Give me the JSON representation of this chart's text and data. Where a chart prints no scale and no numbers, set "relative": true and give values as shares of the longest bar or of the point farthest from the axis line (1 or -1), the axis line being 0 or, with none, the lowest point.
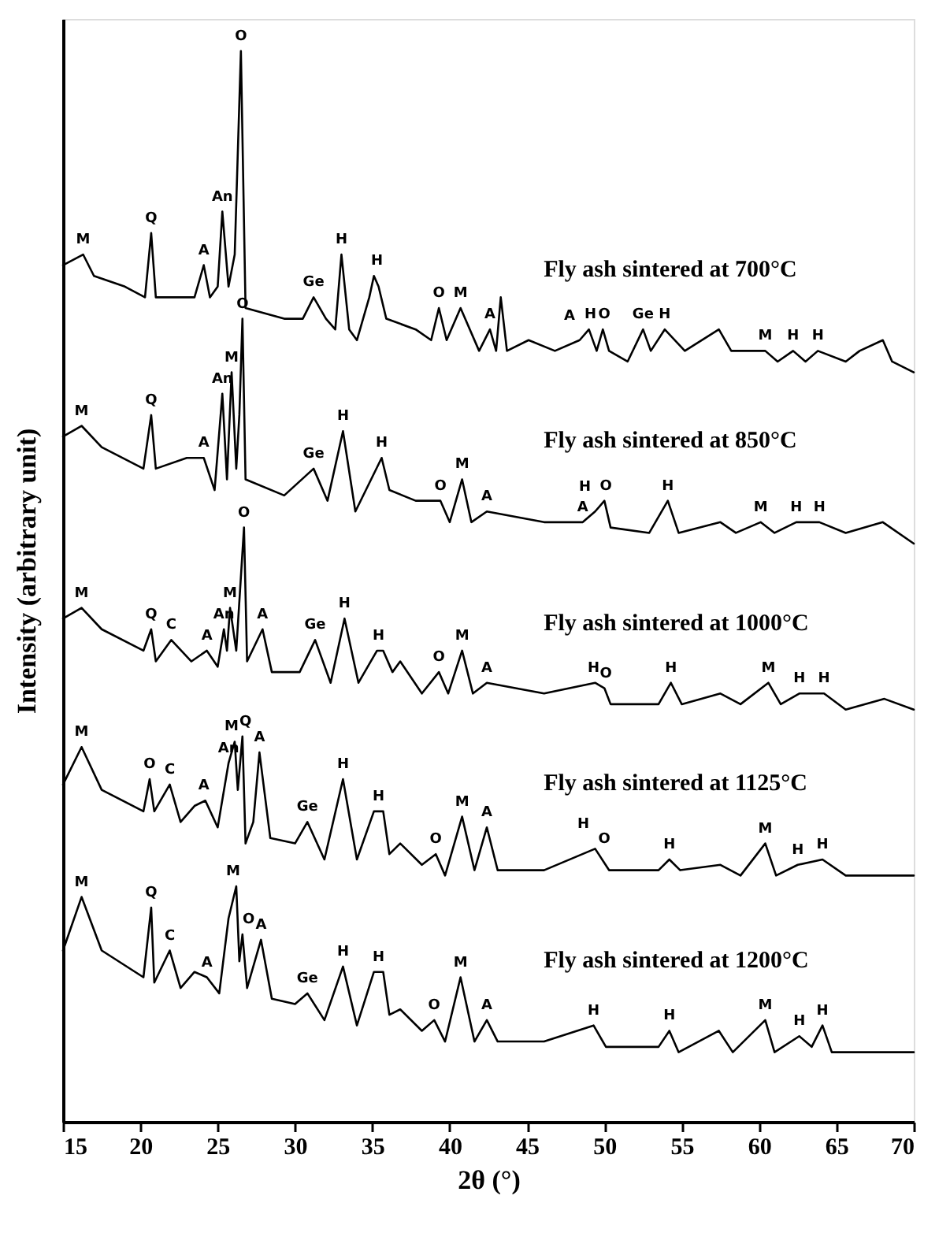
{
  "chart_data": {
    "type": "line",
    "relative": true,
    "xlabel": "2θ (°)",
    "ylabel": "Intensity (arbitrary unit)",
    "xlim": [
      15,
      70
    ],
    "xticks": [
      15,
      20,
      25,
      30,
      35,
      40,
      45,
      50,
      55,
      60,
      65,
      70
    ],
    "grid": false,
    "legend": false,
    "marker": "none",
    "line_style": "solid",
    "series": [
      {
        "name": "Fly ash sintered at 700°C",
        "color": "#000000",
        "x": [
          15.0,
          16.3,
          17,
          19,
          20.3,
          20.7,
          21.0,
          23.5,
          24.1,
          24.5,
          25.0,
          25.3,
          25.7,
          26.1,
          26.5,
          26.8,
          29.3,
          30.5,
          31.2,
          32.0,
          32.6,
          33.0,
          33.5,
          34.0,
          34.8,
          35.1,
          35.4,
          35.9,
          37.8,
          38.8,
          39.3,
          39.8,
          40.7,
          41.9,
          42.6,
          43.0,
          43.3,
          43.7,
          45.1,
          46.8,
          48.4,
          49.0,
          49.5,
          49.9,
          50.3,
          51.5,
          52.5,
          53.0,
          53.9,
          55.2,
          57.4,
          58.2,
          59.7,
          60.4,
          61.2,
          62.2,
          63.0,
          63.8,
          65.6,
          66.5,
          68.0,
          68.6,
          70
        ],
        "values": [
          0.8,
          0.81,
          0.79,
          0.78,
          0.77,
          0.83,
          0.77,
          0.77,
          0.8,
          0.77,
          0.78,
          0.85,
          0.78,
          0.81,
          1.0,
          0.76,
          0.75,
          0.75,
          0.77,
          0.75,
          0.74,
          0.81,
          0.74,
          0.73,
          0.77,
          0.79,
          0.78,
          0.75,
          0.74,
          0.73,
          0.76,
          0.73,
          0.76,
          0.72,
          0.74,
          0.72,
          0.77,
          0.72,
          0.73,
          0.72,
          0.73,
          0.74,
          0.72,
          0.74,
          0.72,
          0.71,
          0.74,
          0.72,
          0.74,
          0.72,
          0.74,
          0.72,
          0.72,
          0.72,
          0.71,
          0.72,
          0.71,
          0.72,
          0.71,
          0.72,
          0.73,
          0.71,
          0.7
        ]
      },
      {
        "name": "Fly ash sintered at 850°C",
        "color": "#000000",
        "x": [
          15.0,
          16.2,
          17.5,
          20.2,
          20.7,
          21.0,
          23.0,
          24.1,
          24.8,
          25.3,
          25.6,
          25.9,
          26.2,
          26.4,
          26.6,
          26.8,
          29.3,
          31.2,
          32.1,
          33.1,
          33.9,
          35.6,
          36.1,
          37.8,
          39.4,
          40.0,
          40.8,
          41.4,
          42.4,
          46.1,
          48.6,
          49.4,
          50.0,
          50.4,
          52.9,
          54.1,
          54.8,
          57.5,
          58.5,
          60.1,
          61.0,
          62.4,
          63.9,
          65.6,
          68.0,
          70
        ],
        "values": [
          0.64,
          0.65,
          0.63,
          0.61,
          0.66,
          0.61,
          0.62,
          0.62,
          0.59,
          0.68,
          0.6,
          0.7,
          0.61,
          0.66,
          0.75,
          0.6,
          0.585,
          0.61,
          0.58,
          0.645,
          0.57,
          0.62,
          0.59,
          0.58,
          0.58,
          0.56,
          0.6,
          0.56,
          0.57,
          0.56,
          0.56,
          0.57,
          0.58,
          0.555,
          0.55,
          0.58,
          0.55,
          0.56,
          0.55,
          0.56,
          0.55,
          0.56,
          0.56,
          0.55,
          0.56,
          0.54
        ]
      },
      {
        "name": "Fly ash sintered at 1000°C",
        "color": "#000000",
        "x": [
          15.0,
          16.2,
          17.5,
          20.2,
          20.7,
          21.0,
          22.0,
          23.3,
          24.3,
          25.0,
          25.4,
          25.6,
          25.8,
          26.2,
          26.7,
          26.9,
          27.9,
          28.5,
          30.3,
          31.3,
          32.3,
          33.2,
          34.1,
          35.3,
          35.7,
          36.3,
          36.8,
          38.2,
          39.3,
          39.9,
          40.8,
          41.5,
          42.4,
          46.1,
          49.4,
          50.0,
          50.4,
          53.5,
          54.3,
          55.0,
          57.5,
          58.8,
          60.6,
          61.4,
          62.6,
          64.2,
          65.6,
          68.1,
          70
        ],
        "values": [
          0.47,
          0.48,
          0.46,
          0.44,
          0.46,
          0.43,
          0.45,
          0.43,
          0.44,
          0.425,
          0.46,
          0.44,
          0.48,
          0.44,
          0.555,
          0.43,
          0.46,
          0.42,
          0.42,
          0.45,
          0.41,
          0.47,
          0.41,
          0.44,
          0.44,
          0.42,
          0.43,
          0.4,
          0.42,
          0.4,
          0.44,
          0.4,
          0.41,
          0.4,
          0.41,
          0.405,
          0.39,
          0.39,
          0.41,
          0.39,
          0.4,
          0.39,
          0.41,
          0.39,
          0.4,
          0.4,
          0.385,
          0.395,
          0.385
        ]
      },
      {
        "name": "Fly ash sintered at 1125°C",
        "color": "#000000",
        "x": [
          15.0,
          16.2,
          17.5,
          20.2,
          20.6,
          20.9,
          21.9,
          22.6,
          23.5,
          24.2,
          25.0,
          25.7,
          26.1,
          26.3,
          26.6,
          26.8,
          27.3,
          27.7,
          28.4,
          30.0,
          30.8,
          31.9,
          33.1,
          34.0,
          35.1,
          35.7,
          36.1,
          36.8,
          38.2,
          39.1,
          39.7,
          40.8,
          41.6,
          42.4,
          43.1,
          46.1,
          49.4,
          50.3,
          53.5,
          54.2,
          54.9,
          57.5,
          58.8,
          60.4,
          61.1,
          62.5,
          64.1,
          65.6,
          70
        ],
        "values": [
          0.315,
          0.35,
          0.31,
          0.29,
          0.32,
          0.29,
          0.315,
          0.28,
          0.295,
          0.3,
          0.275,
          0.335,
          0.355,
          0.31,
          0.36,
          0.26,
          0.28,
          0.345,
          0.265,
          0.26,
          0.28,
          0.245,
          0.32,
          0.245,
          0.29,
          0.29,
          0.25,
          0.26,
          0.24,
          0.25,
          0.23,
          0.285,
          0.235,
          0.275,
          0.235,
          0.235,
          0.255,
          0.235,
          0.235,
          0.245,
          0.235,
          0.24,
          0.23,
          0.26,
          0.23,
          0.24,
          0.245,
          0.23,
          0.23
        ]
      },
      {
        "name": "Fly ash sintered at 1200°C",
        "color": "#000000",
        "x": [
          15.0,
          16.2,
          17.5,
          20.2,
          20.7,
          20.9,
          21.9,
          22.6,
          23.5,
          24.3,
          25.1,
          25.7,
          26.2,
          26.4,
          26.6,
          26.9,
          27.8,
          28.5,
          30.0,
          30.8,
          31.9,
          33.1,
          34.0,
          35.1,
          35.7,
          36.1,
          36.8,
          38.2,
          39.0,
          39.7,
          40.7,
          41.6,
          42.4,
          43.1,
          46.1,
          49.3,
          50.1,
          53.5,
          54.2,
          54.8,
          57.4,
          58.3,
          60.4,
          61.0,
          62.6,
          63.4,
          64.1,
          64.7,
          70
        ],
        "values": [
          0.16,
          0.21,
          0.16,
          0.135,
          0.2,
          0.13,
          0.16,
          0.125,
          0.14,
          0.135,
          0.12,
          0.19,
          0.22,
          0.15,
          0.175,
          0.125,
          0.17,
          0.115,
          0.11,
          0.12,
          0.095,
          0.145,
          0.09,
          0.14,
          0.14,
          0.1,
          0.105,
          0.085,
          0.095,
          0.075,
          0.135,
          0.075,
          0.095,
          0.075,
          0.075,
          0.09,
          0.07,
          0.07,
          0.085,
          0.065,
          0.085,
          0.065,
          0.095,
          0.065,
          0.08,
          0.07,
          0.09,
          0.065,
          0.065
        ]
      }
    ],
    "annotations": [
      {
        "text": "M",
        "x": 16.3,
        "y": 0.81
      },
      {
        "text": "Q",
        "x": 20.7,
        "y": 0.83
      },
      {
        "text": "A",
        "x": 24.1,
        "y": 0.8
      },
      {
        "text": "An",
        "x": 25.3,
        "y": 0.85
      },
      {
        "text": "O",
        "x": 26.5,
        "y": 1.0
      },
      {
        "text": "Ge",
        "x": 31.2,
        "y": 0.77
      },
      {
        "text": "H",
        "x": 33.0,
        "y": 0.81
      },
      {
        "text": "H",
        "x": 35.3,
        "y": 0.79
      },
      {
        "text": "O",
        "x": 39.3,
        "y": 0.76
      },
      {
        "text": "M",
        "x": 40.7,
        "y": 0.76
      },
      {
        "text": "A",
        "x": 42.6,
        "y": 0.74
      },
      {
        "text": "A",
        "x": 48.4,
        "y": 0.73
      },
      {
        "text": "H",
        "x": 49.1,
        "y": 0.74
      },
      {
        "text": "O",
        "x": 50.0,
        "y": 0.74
      },
      {
        "text": "Ge",
        "x": 52.5,
        "y": 0.74
      },
      {
        "text": "H",
        "x": 53.9,
        "y": 0.74
      },
      {
        "text": "M",
        "x": 60.4,
        "y": 0.72
      },
      {
        "text": "H",
        "x": 62.2,
        "y": 0.72
      },
      {
        "text": "H",
        "x": 63.8,
        "y": 0.72
      },
      {
        "text": "M",
        "x": 16.2,
        "y": 0.65
      },
      {
        "text": "Q",
        "x": 20.7,
        "y": 0.66
      },
      {
        "text": "A",
        "x": 24.1,
        "y": 0.62
      },
      {
        "text": "An",
        "x": 25.3,
        "y": 0.68
      },
      {
        "text": "M",
        "x": 25.9,
        "y": 0.7
      },
      {
        "text": "O",
        "x": 26.6,
        "y": 0.75
      },
      {
        "text": "Ge",
        "x": 31.2,
        "y": 0.61
      },
      {
        "text": "H",
        "x": 33.1,
        "y": 0.645
      },
      {
        "text": "H",
        "x": 35.6,
        "y": 0.62
      },
      {
        "text": "O",
        "x": 39.4,
        "y": 0.58
      },
      {
        "text": "M",
        "x": 40.8,
        "y": 0.6
      },
      {
        "text": "A",
        "x": 42.4,
        "y": 0.57
      },
      {
        "text": "A",
        "x": 48.6,
        "y": 0.56
      },
      {
        "text": "H",
        "x": 49.4,
        "y": 0.57
      },
      {
        "text": "O",
        "x": 50.1,
        "y": 0.58
      },
      {
        "text": "H",
        "x": 54.1,
        "y": 0.58
      },
      {
        "text": "M",
        "x": 60.1,
        "y": 0.56
      },
      {
        "text": "H",
        "x": 62.4,
        "y": 0.56
      },
      {
        "text": "H",
        "x": 63.9,
        "y": 0.56
      },
      {
        "text": "M",
        "x": 16.2,
        "y": 0.48
      },
      {
        "text": "Q",
        "x": 20.7,
        "y": 0.46
      },
      {
        "text": "C",
        "x": 22.0,
        "y": 0.45
      },
      {
        "text": "A",
        "x": 24.3,
        "y": 0.44
      },
      {
        "text": "An",
        "x": 25.4,
        "y": 0.46
      },
      {
        "text": "M",
        "x": 25.8,
        "y": 0.48
      },
      {
        "text": "O",
        "x": 26.7,
        "y": 0.555
      },
      {
        "text": "A",
        "x": 27.9,
        "y": 0.46
      },
      {
        "text": "Ge",
        "x": 31.3,
        "y": 0.45
      },
      {
        "text": "H",
        "x": 33.2,
        "y": 0.47
      },
      {
        "text": "H",
        "x": 35.4,
        "y": 0.44
      },
      {
        "text": "O",
        "x": 39.3,
        "y": 0.42
      },
      {
        "text": "M",
        "x": 40.8,
        "y": 0.44
      },
      {
        "text": "A",
        "x": 42.4,
        "y": 0.41
      },
      {
        "text": "H",
        "x": 49.3,
        "y": 0.41
      },
      {
        "text": "O",
        "x": 50.1,
        "y": 0.405
      },
      {
        "text": "H",
        "x": 54.3,
        "y": 0.41
      },
      {
        "text": "M",
        "x": 60.6,
        "y": 0.41
      },
      {
        "text": "H",
        "x": 62.6,
        "y": 0.4
      },
      {
        "text": "H",
        "x": 64.2,
        "y": 0.4
      },
      {
        "text": "M",
        "x": 16.2,
        "y": 0.35
      },
      {
        "text": "O",
        "x": 20.6,
        "y": 0.32
      },
      {
        "text": "C",
        "x": 21.9,
        "y": 0.315
      },
      {
        "text": "A",
        "x": 24.1,
        "y": 0.3
      },
      {
        "text": "An",
        "x": 25.7,
        "y": 0.335
      },
      {
        "text": "M",
        "x": 25.9,
        "y": 0.355
      },
      {
        "text": "Q",
        "x": 26.8,
        "y": 0.36
      },
      {
        "text": "A",
        "x": 27.7,
        "y": 0.345
      },
      {
        "text": "Ge",
        "x": 30.8,
        "y": 0.28
      },
      {
        "text": "H",
        "x": 33.1,
        "y": 0.32
      },
      {
        "text": "H",
        "x": 35.4,
        "y": 0.29
      },
      {
        "text": "O",
        "x": 39.1,
        "y": 0.25
      },
      {
        "text": "M",
        "x": 40.8,
        "y": 0.285
      },
      {
        "text": "A",
        "x": 42.4,
        "y": 0.275
      },
      {
        "text": "H",
        "x": 49.3,
        "y": 0.255
      },
      {
        "text": "O",
        "x": 50.0,
        "y": 0.25
      },
      {
        "text": "H",
        "x": 54.2,
        "y": 0.245
      },
      {
        "text": "M",
        "x": 60.4,
        "y": 0.26
      },
      {
        "text": "H",
        "x": 62.5,
        "y": 0.24
      },
      {
        "text": "H",
        "x": 64.1,
        "y": 0.245
      },
      {
        "text": "M",
        "x": 16.2,
        "y": 0.21
      },
      {
        "text": "Q",
        "x": 20.7,
        "y": 0.2
      },
      {
        "text": "C",
        "x": 21.9,
        "y": 0.16
      },
      {
        "text": "A",
        "x": 24.3,
        "y": 0.135
      },
      {
        "text": "M",
        "x": 26.0,
        "y": 0.22
      },
      {
        "text": "O",
        "x": 27.0,
        "y": 0.175
      },
      {
        "text": "A",
        "x": 27.8,
        "y": 0.17
      },
      {
        "text": "Ge",
        "x": 30.8,
        "y": 0.12
      },
      {
        "text": "H",
        "x": 33.1,
        "y": 0.145
      },
      {
        "text": "H",
        "x": 35.4,
        "y": 0.14
      },
      {
        "text": "O",
        "x": 39.0,
        "y": 0.095
      },
      {
        "text": "M",
        "x": 40.7,
        "y": 0.135
      },
      {
        "text": "A",
        "x": 42.4,
        "y": 0.095
      },
      {
        "text": "H",
        "x": 49.3,
        "y": 0.09
      },
      {
        "text": "H",
        "x": 54.2,
        "y": 0.085
      },
      {
        "text": "M",
        "x": 60.4,
        "y": 0.095
      },
      {
        "text": "H",
        "x": 62.6,
        "y": 0.08
      },
      {
        "text": "H",
        "x": 64.1,
        "y": 0.09
      }
    ]
  }
}
